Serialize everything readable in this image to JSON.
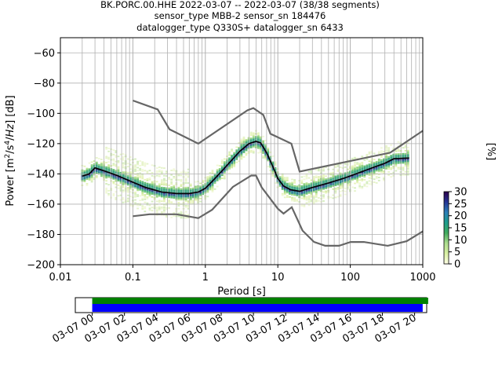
{
  "title_lines": [
    "BK.PORC.00.HHE   2022-03-07 -- 2022-03-07  (38/38 segments)",
    "sensor_type MBB-2 sensor_sn 184476",
    "datalogger_type Q330S+ datalogger_sn 6433"
  ],
  "chart_data": {
    "type": "heatmap",
    "xlabel": "Period [s]",
    "ylabel": "Power [m²/s⁴/Hz] [dB]",
    "x_scale": "log",
    "xlim": [
      0.01,
      1000
    ],
    "ylim": [
      -200,
      -50
    ],
    "x_tick_labels": [
      "0.01",
      "0.1",
      "1",
      "10",
      "100",
      "1000"
    ],
    "x_tick_values": [
      0.01,
      0.1,
      1,
      10,
      100,
      1000
    ],
    "y_tick_values": [
      -60,
      -80,
      -100,
      -120,
      -140,
      -160,
      -180,
      -200
    ],
    "y_tick_labels": [
      "−60",
      "−80",
      "−100",
      "−120",
      "−140",
      "−160",
      "−180",
      "−200"
    ],
    "grid": true,
    "colorbar": {
      "label": "[%]",
      "range": [
        0,
        30
      ],
      "ticks": [
        0,
        5,
        10,
        15,
        20,
        25,
        30
      ],
      "colors": [
        "#ffffe5",
        "#d9f0a3",
        "#addd8e",
        "#41ab5d",
        "#1d9d8c",
        "#2c7fb8",
        "#253494",
        "#2d004b"
      ]
    },
    "noise_model_upper": {
      "name": "NHNM",
      "color": "#666666",
      "points": [
        [
          0.1,
          -91.5
        ],
        [
          0.22,
          -97.4
        ],
        [
          0.32,
          -110.5
        ],
        [
          0.8,
          -120
        ],
        [
          3.8,
          -98
        ],
        [
          4.6,
          -96.5
        ],
        [
          6.3,
          -101
        ],
        [
          7.9,
          -113.5
        ],
        [
          15.4,
          -120
        ],
        [
          20,
          -138.5
        ],
        [
          354.8,
          -126
        ],
        [
          1000,
          -111.5
        ]
      ]
    },
    "noise_model_lower": {
      "name": "NLNM",
      "color": "#666666",
      "points": [
        [
          0.1,
          -168
        ],
        [
          0.17,
          -166.7
        ],
        [
          0.4,
          -166.7
        ],
        [
          0.8,
          -169.2
        ],
        [
          1.24,
          -163.7
        ],
        [
          2.4,
          -148.6
        ],
        [
          4.3,
          -141.1
        ],
        [
          5,
          -141.1
        ],
        [
          6,
          -149
        ],
        [
          10,
          -163
        ],
        [
          12,
          -166.2
        ],
        [
          15.6,
          -162
        ],
        [
          21.9,
          -177.5
        ],
        [
          31.6,
          -185
        ],
        [
          45,
          -187.5
        ],
        [
          70,
          -187.5
        ],
        [
          101,
          -185
        ],
        [
          154,
          -185
        ],
        [
          328,
          -187.5
        ],
        [
          600,
          -184.5
        ],
        [
          1000,
          -178
        ]
      ]
    },
    "mode_line": {
      "color": "#000000",
      "points": [
        [
          0.02,
          -141.5
        ],
        [
          0.025,
          -140
        ],
        [
          0.03,
          -136
        ],
        [
          0.04,
          -138
        ],
        [
          0.06,
          -141
        ],
        [
          0.1,
          -145.5
        ],
        [
          0.15,
          -149
        ],
        [
          0.25,
          -152
        ],
        [
          0.4,
          -153
        ],
        [
          0.6,
          -153
        ],
        [
          0.8,
          -152
        ],
        [
          1.0,
          -149.5
        ],
        [
          1.3,
          -144
        ],
        [
          1.7,
          -138
        ],
        [
          2.3,
          -131
        ],
        [
          3.0,
          -125
        ],
        [
          4.0,
          -120
        ],
        [
          5.0,
          -118.5
        ],
        [
          5.8,
          -119.5
        ],
        [
          7.0,
          -126
        ],
        [
          8.5,
          -135
        ],
        [
          10.0,
          -143
        ],
        [
          12.0,
          -148
        ],
        [
          15.0,
          -150.5
        ],
        [
          20.0,
          -151.5
        ],
        [
          30.0,
          -149
        ],
        [
          50.0,
          -146
        ],
        [
          80.0,
          -143
        ],
        [
          120.0,
          -140
        ],
        [
          200.0,
          -136
        ],
        [
          300.0,
          -133
        ],
        [
          400.0,
          -130
        ],
        [
          650.0,
          -129.5
        ]
      ]
    },
    "timeline": {
      "tick_labels": [
        "03-07 00",
        "03-07 02",
        "03-07 04",
        "03-07 06",
        "03-07 08",
        "03-07 10",
        "03-07 12",
        "03-07 14",
        "03-07 16",
        "03-07 18",
        "03-07 20"
      ],
      "range_hours": [
        -1.05,
        20.75
      ],
      "data_available_hours": [
        0,
        20.5
      ],
      "used_segments_hours": [
        0,
        20.5
      ],
      "data_available_color": "#008000",
      "used_segments_color": "#0000ff"
    }
  }
}
